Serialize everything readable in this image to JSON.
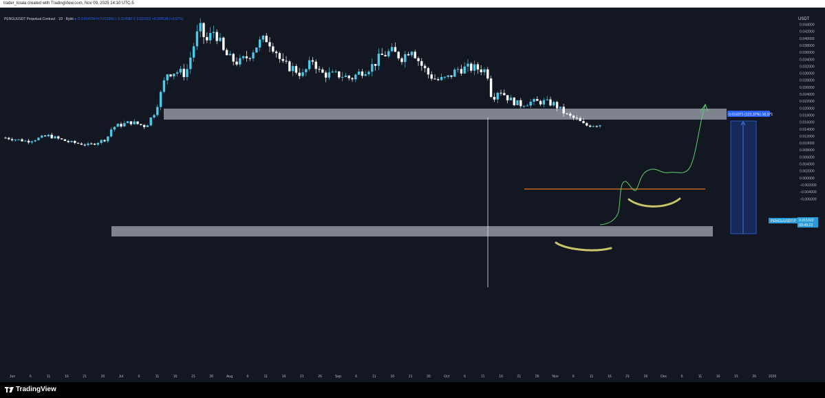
{
  "header": {
    "credit": "trader_koala created with TradingView.com, Nov 09, 2025 14:10 UTC-5"
  },
  "legend": {
    "symbol": "PENGUUSDT Perpetual Contract · 1D · Bybit",
    "open": "O 0.014784",
    "high": "H 0.015356",
    "low": "L 0.014580",
    "close": "C 0.015322",
    "change": "+0.000528 (+3.57%)"
  },
  "axis": {
    "currency": "USDT",
    "price_labels": [
      "0.044000",
      "0.042000",
      "0.040000",
      "0.038000",
      "0.036000",
      "0.034000",
      "0.032000",
      "0.030000",
      "0.028000",
      "0.026000",
      "0.024000",
      "0.022000",
      "0.020000",
      "0.018000",
      "0.016000",
      "0.014000",
      "0.012000",
      "0.010000",
      "0.008000",
      "0.006000",
      "0.004000",
      "0.002000",
      "0.000000",
      "−0.002000",
      "−0.004000",
      "−0.006000"
    ],
    "time_labels": [
      "Jun",
      "6",
      "11",
      "16",
      "21",
      "26",
      "Jul",
      "6",
      "11",
      "16",
      "21",
      "26",
      "Aug",
      "6",
      "11",
      "16",
      "21",
      "26",
      "Sep",
      "6",
      "11",
      "16",
      "21",
      "26",
      "Oct",
      "6",
      "11",
      "16",
      "21",
      "26",
      "Nov",
      "6",
      "11",
      "16",
      "21",
      "26",
      "Dec",
      "6",
      "11",
      "16",
      "21",
      "26",
      "2026"
    ]
  },
  "tags": {
    "last_price_symbol": "PENGUUSDT.P",
    "last_price": "0.015322",
    "countdown": "09:49:23",
    "measure": "0.016371 (121.37%) 16,371"
  },
  "colors": {
    "background": "#131722",
    "candle_up": "#4cc9e8",
    "candle_down": "#ffffff",
    "zone": "#c8ccd6",
    "resistance_line": "#e8732a",
    "projection": "#5fd36a",
    "handwriting": "#c9c46a",
    "measure": "#2962ff"
  },
  "footer": {
    "brand": "TradingView"
  }
}
